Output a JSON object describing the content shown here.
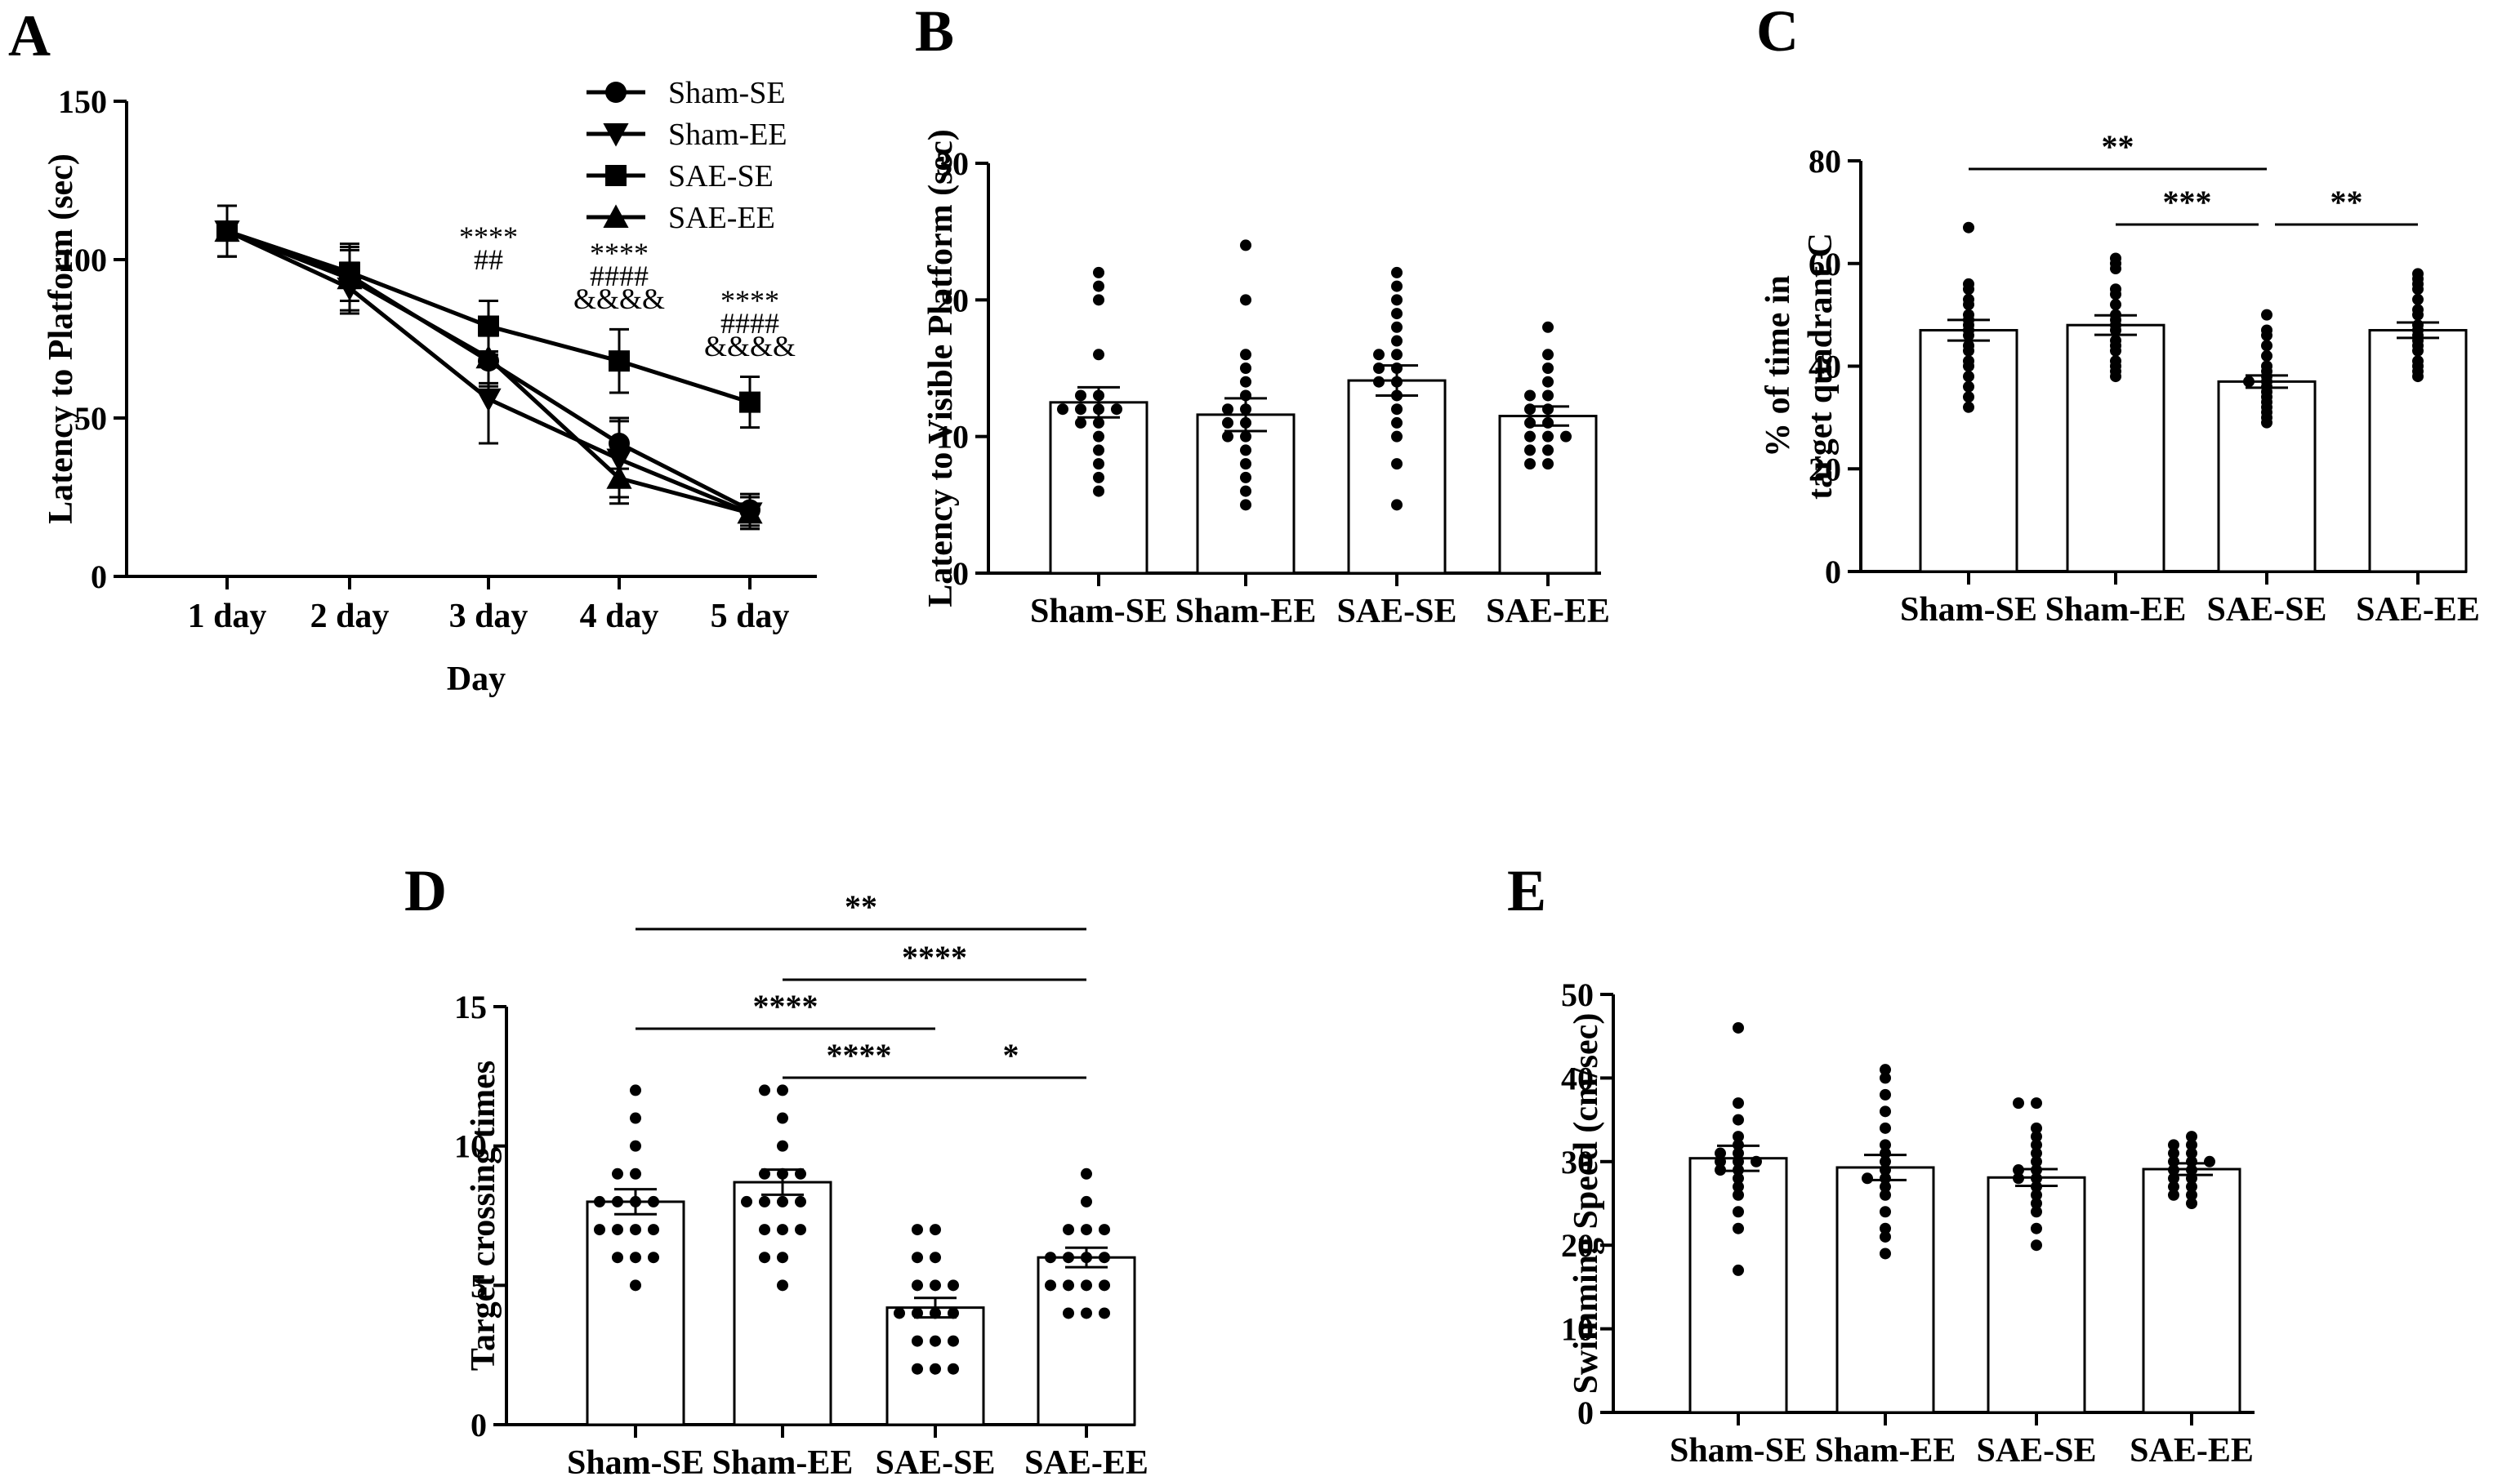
{
  "chart_data": [
    {
      "panel": "A",
      "type": "line",
      "ylabel": "Latency to Platform (sec)",
      "xlabel": "Day",
      "categories": [
        "1 day",
        "2 day",
        "3 day",
        "4 day",
        "5 day"
      ],
      "ylim": [
        0,
        150
      ],
      "yticks": [
        0,
        50,
        100,
        150
      ],
      "legend_position": "top-right",
      "series": [
        {
          "name": "Sham-SE",
          "marker": "circle",
          "values": [
            109,
            95,
            68,
            42,
            21
          ],
          "errors": [
            8,
            8,
            8,
            8,
            5
          ]
        },
        {
          "name": "Sham-EE",
          "marker": "triangle-down",
          "values": [
            109,
            91,
            56,
            37,
            20
          ],
          "errors": [
            8,
            8,
            14,
            12,
            5
          ]
        },
        {
          "name": "SAE-SE",
          "marker": "square",
          "values": [
            109,
            96,
            79,
            68,
            55
          ],
          "errors": [
            8,
            9,
            8,
            10,
            8
          ]
        },
        {
          "name": "SAE-EE",
          "marker": "triangle-up",
          "values": [
            109,
            94,
            69,
            31,
            20
          ],
          "errors": [
            8,
            10,
            8,
            8,
            5
          ]
        }
      ],
      "annotations": [
        {
          "category": "3 day",
          "lines": [
            "****",
            "##"
          ]
        },
        {
          "category": "4 day",
          "lines": [
            "****",
            "####",
            "&&&&"
          ]
        },
        {
          "category": "5 day",
          "lines": [
            "****",
            "####",
            "&&&&"
          ]
        }
      ]
    },
    {
      "panel": "B",
      "type": "bar",
      "ylabel": "Latency to Visible Platform (sec)",
      "categories": [
        "Sham-SE",
        "Sham-EE",
        "SAE-SE",
        "SAE-EE"
      ],
      "ylim": [
        0,
        30
      ],
      "yticks": [
        0,
        10,
        20,
        30
      ],
      "values": [
        12.5,
        11.6,
        14.1,
        11.5
      ],
      "sem": [
        1.1,
        1.2,
        1.1,
        0.7
      ],
      "points": [
        [
          22,
          21,
          20,
          16,
          13,
          13,
          12,
          12,
          12,
          12,
          11,
          11,
          10,
          9,
          8,
          7,
          6
        ],
        [
          24,
          20,
          16,
          15,
          14,
          13,
          12,
          12,
          11,
          11,
          10,
          10,
          9,
          8,
          7,
          6,
          5
        ],
        [
          22,
          21,
          20,
          19,
          18,
          17,
          16,
          16,
          15,
          15,
          14,
          14,
          13,
          12,
          11,
          10,
          8,
          5
        ],
        [
          18,
          16,
          15,
          14,
          13,
          13,
          12,
          12,
          11,
          11,
          10,
          10,
          10,
          9,
          9,
          8,
          8
        ]
      ],
      "significance": []
    },
    {
      "panel": "C",
      "type": "bar",
      "ylabel": "% of time in target quadrant C",
      "ylabel_lines": [
        "% of time in",
        "target quadrant C"
      ],
      "categories": [
        "Sham-SE",
        "Sham-EE",
        "SAE-SE",
        "SAE-EE"
      ],
      "ylim": [
        0,
        80
      ],
      "yticks": [
        0,
        20,
        40,
        60,
        80
      ],
      "values": [
        47,
        48,
        37,
        47
      ],
      "sem": [
        2.0,
        1.9,
        1.2,
        1.5
      ],
      "points": [
        [
          67,
          56,
          55,
          53,
          52,
          50,
          49,
          48,
          47,
          46,
          44,
          43,
          41,
          40,
          38,
          36,
          34,
          32
        ],
        [
          61,
          60,
          59,
          55,
          54,
          52,
          50,
          49,
          48,
          47,
          45,
          44,
          43,
          41,
          40,
          39,
          38
        ],
        [
          50,
          47,
          46,
          44,
          42,
          40,
          39,
          38,
          37,
          37,
          36,
          35,
          34,
          33,
          32,
          31,
          30,
          29
        ],
        [
          58,
          57,
          56,
          55,
          53,
          51,
          50,
          48,
          47,
          46,
          45,
          44,
          43,
          41,
          40,
          39,
          38
        ]
      ],
      "significance": [
        {
          "from": 0,
          "to": 2,
          "label": "**"
        },
        {
          "from": 1,
          "to": 2,
          "label": "***"
        },
        {
          "from": 2,
          "to": 3,
          "label": "**"
        }
      ]
    },
    {
      "panel": "D",
      "type": "bar",
      "ylabel": "Target crossing times",
      "categories": [
        "Sham-SE",
        "Sham-EE",
        "SAE-SE",
        "SAE-EE"
      ],
      "ylim": [
        0,
        15
      ],
      "yticks": [
        0,
        5,
        10,
        15
      ],
      "values": [
        8.0,
        8.7,
        4.2,
        6.0
      ],
      "sem": [
        0.45,
        0.45,
        0.35,
        0.35
      ],
      "points": [
        [
          12,
          11,
          10,
          9,
          9,
          8,
          8,
          8,
          8,
          7,
          7,
          7,
          7,
          6,
          6,
          6,
          5
        ],
        [
          12,
          12,
          11,
          10,
          9,
          9,
          9,
          8,
          8,
          8,
          8,
          7,
          7,
          7,
          6,
          6,
          5
        ],
        [
          7,
          7,
          6,
          6,
          5,
          5,
          5,
          4,
          4,
          4,
          4,
          3,
          3,
          3,
          2,
          2,
          2
        ],
        [
          9,
          8,
          7,
          7,
          7,
          6,
          6,
          6,
          6,
          5,
          5,
          5,
          5,
          4,
          4,
          4
        ]
      ],
      "significance": [
        {
          "from": 0,
          "to": 3,
          "label": "**"
        },
        {
          "from": 1,
          "to": 3,
          "label": "****"
        },
        {
          "from": 0,
          "to": 2,
          "label": "****"
        },
        {
          "from": 1,
          "to": 2,
          "label": "****"
        },
        {
          "from": 2,
          "to": 3,
          "label": "*"
        }
      ]
    },
    {
      "panel": "E",
      "type": "bar",
      "ylabel": "Swimming Speed (cm/sec)",
      "categories": [
        "Sham-SE",
        "Sham-EE",
        "SAE-SE",
        "SAE-EE"
      ],
      "ylim": [
        0,
        50
      ],
      "yticks": [
        0,
        10,
        20,
        30,
        40,
        50
      ],
      "values": [
        30.4,
        29.3,
        28.1,
        29.1
      ],
      "sem": [
        1.5,
        1.5,
        1.0,
        0.7
      ],
      "points": [
        [
          46,
          37,
          35,
          33,
          32,
          31,
          31,
          30,
          30,
          30,
          29,
          29,
          28,
          27,
          26,
          24,
          22,
          17
        ],
        [
          41,
          40,
          38,
          36,
          34,
          32,
          31,
          30,
          29,
          28,
          28,
          27,
          26,
          24,
          22,
          21,
          19
        ],
        [
          37,
          37,
          34,
          33,
          32,
          31,
          30,
          29,
          29,
          28,
          28,
          27,
          26,
          25,
          24,
          22,
          20
        ],
        [
          33,
          32,
          32,
          31,
          31,
          30,
          30,
          30,
          29,
          29,
          28,
          28,
          27,
          27,
          26,
          26,
          25
        ]
      ],
      "significance": []
    }
  ]
}
